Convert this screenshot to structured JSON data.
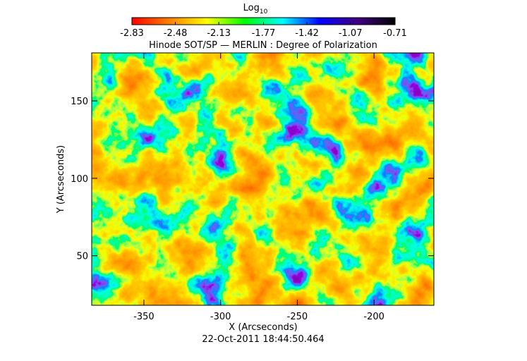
{
  "chart_data": {
    "type": "image",
    "title": "Hinode SOT/SP — MERLIN : Degree of Polarization",
    "x_label": "X (Arcseconds)",
    "y_label": "Y (Arcseconds)",
    "xlim": [
      -384,
      -161
    ],
    "ylim": [
      18,
      181
    ],
    "xticks": [
      -350,
      -300,
      -250,
      -200
    ],
    "yticks": [
      50,
      100,
      150
    ],
    "colorbar": {
      "label": "Log",
      "label_subscript": "10",
      "lim": [
        -2.83,
        -0.71
      ],
      "ticks": [
        -2.83,
        -2.48,
        -2.13,
        -1.77,
        -1.42,
        -1.07,
        -0.71
      ],
      "colors": [
        "#ff0000",
        "#ff8000",
        "#ffff00",
        "#00ff00",
        "#00ffff",
        "#0000ff",
        "#400080",
        "#000000"
      ]
    },
    "footer": "22-Oct-2011 18:44:50.464"
  }
}
